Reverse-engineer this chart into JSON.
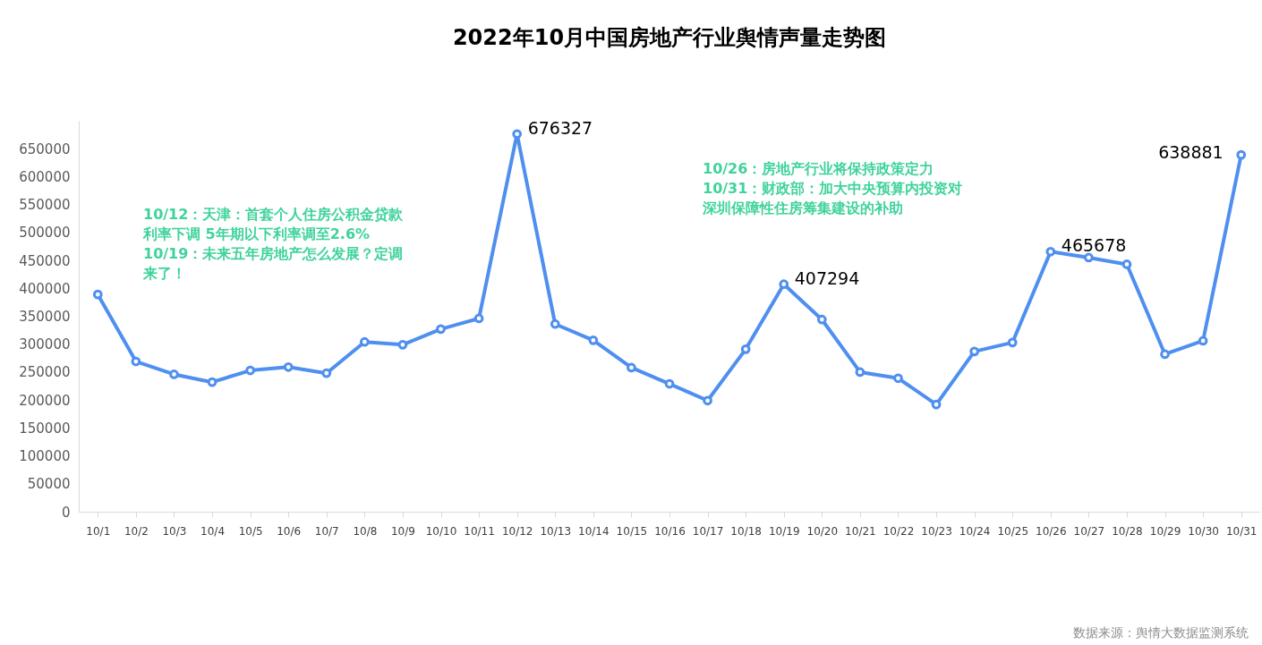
{
  "chart_data": {
    "type": "line",
    "title": "2022年10月中国房地产行业舆情声量走势图",
    "categories": [
      "10/1",
      "10/2",
      "10/3",
      "10/4",
      "10/5",
      "10/6",
      "10/7",
      "10/8",
      "10/9",
      "10/10",
      "10/11",
      "10/12",
      "10/13",
      "10/14",
      "10/15",
      "10/16",
      "10/17",
      "10/18",
      "10/19",
      "10/20",
      "10/21",
      "10/22",
      "10/23",
      "10/24",
      "10/25",
      "10/26",
      "10/27",
      "10/28",
      "10/29",
      "10/30",
      "10/31"
    ],
    "series": [
      {
        "color": "#4f8ff0",
        "values": [
          389000,
          269000,
          246000,
          232000,
          253000,
          259000,
          248000,
          304000,
          299000,
          327000,
          346000,
          676327,
          336000,
          307000,
          258000,
          229000,
          199000,
          291000,
          407294,
          344000,
          250000,
          239000,
          192000,
          287000,
          303000,
          465678,
          455000,
          443000,
          282000,
          306000,
          638881
        ],
        "value_labels": [
          null,
          null,
          null,
          null,
          null,
          null,
          null,
          null,
          null,
          null,
          null,
          "676327",
          null,
          null,
          null,
          null,
          null,
          null,
          "407294",
          null,
          null,
          null,
          null,
          null,
          null,
          "465678",
          null,
          null,
          null,
          null,
          "638881"
        ]
      }
    ],
    "ylim": [
      0,
      700000
    ],
    "yticks": [
      0,
      50000,
      100000,
      150000,
      200000,
      250000,
      300000,
      350000,
      400000,
      450000,
      500000,
      550000,
      600000,
      650000
    ],
    "grid": false,
    "marker": "circle",
    "line_style": "solid",
    "annotations": [
      "10/12：天津：首套个人住房公积金贷款利率下调 5年期以下利率调至2.6%",
      "10/19：未来五年房地产怎么发展？定调来了！",
      "10/26：房地产行业将保持政策定力",
      "10/31：财政部：加大中央预算内投资对深圳保障性住房筹集建设的补助",
      "数据来源：舆情大数据监测系统"
    ]
  }
}
